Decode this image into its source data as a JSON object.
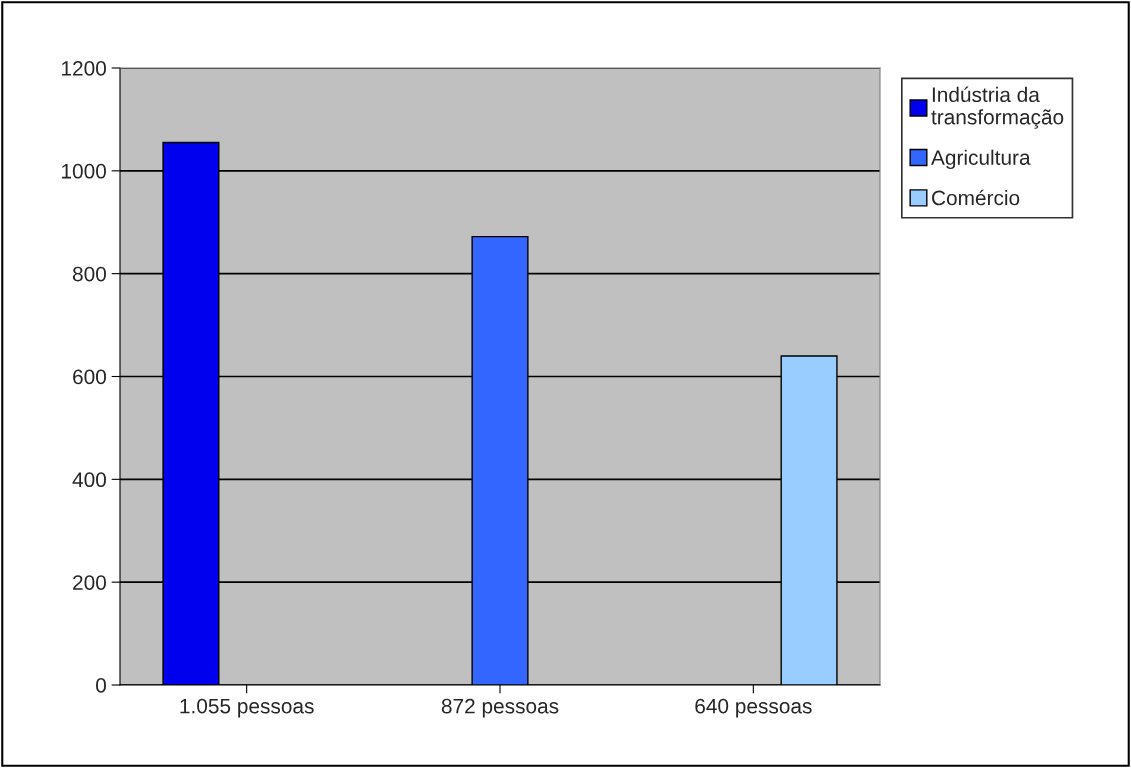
{
  "chart_data": {
    "type": "bar",
    "categories": [
      "1.055 pessoas",
      "872 pessoas",
      "640 pessoas"
    ],
    "series": [
      {
        "name": "Indústria da\ntransformação",
        "color": "#0000ee",
        "values": [
          1055,
          null,
          null
        ]
      },
      {
        "name": "Agricultura",
        "color": "#3366ff",
        "values": [
          null,
          872,
          null
        ]
      },
      {
        "name": "Comércio",
        "color": "#99ccff",
        "values": [
          null,
          null,
          640
        ]
      }
    ],
    "ylim": [
      0,
      1200
    ],
    "yticks": [
      0,
      200,
      400,
      600,
      800,
      1000,
      1200
    ],
    "grid": "y",
    "legend": "top right"
  }
}
